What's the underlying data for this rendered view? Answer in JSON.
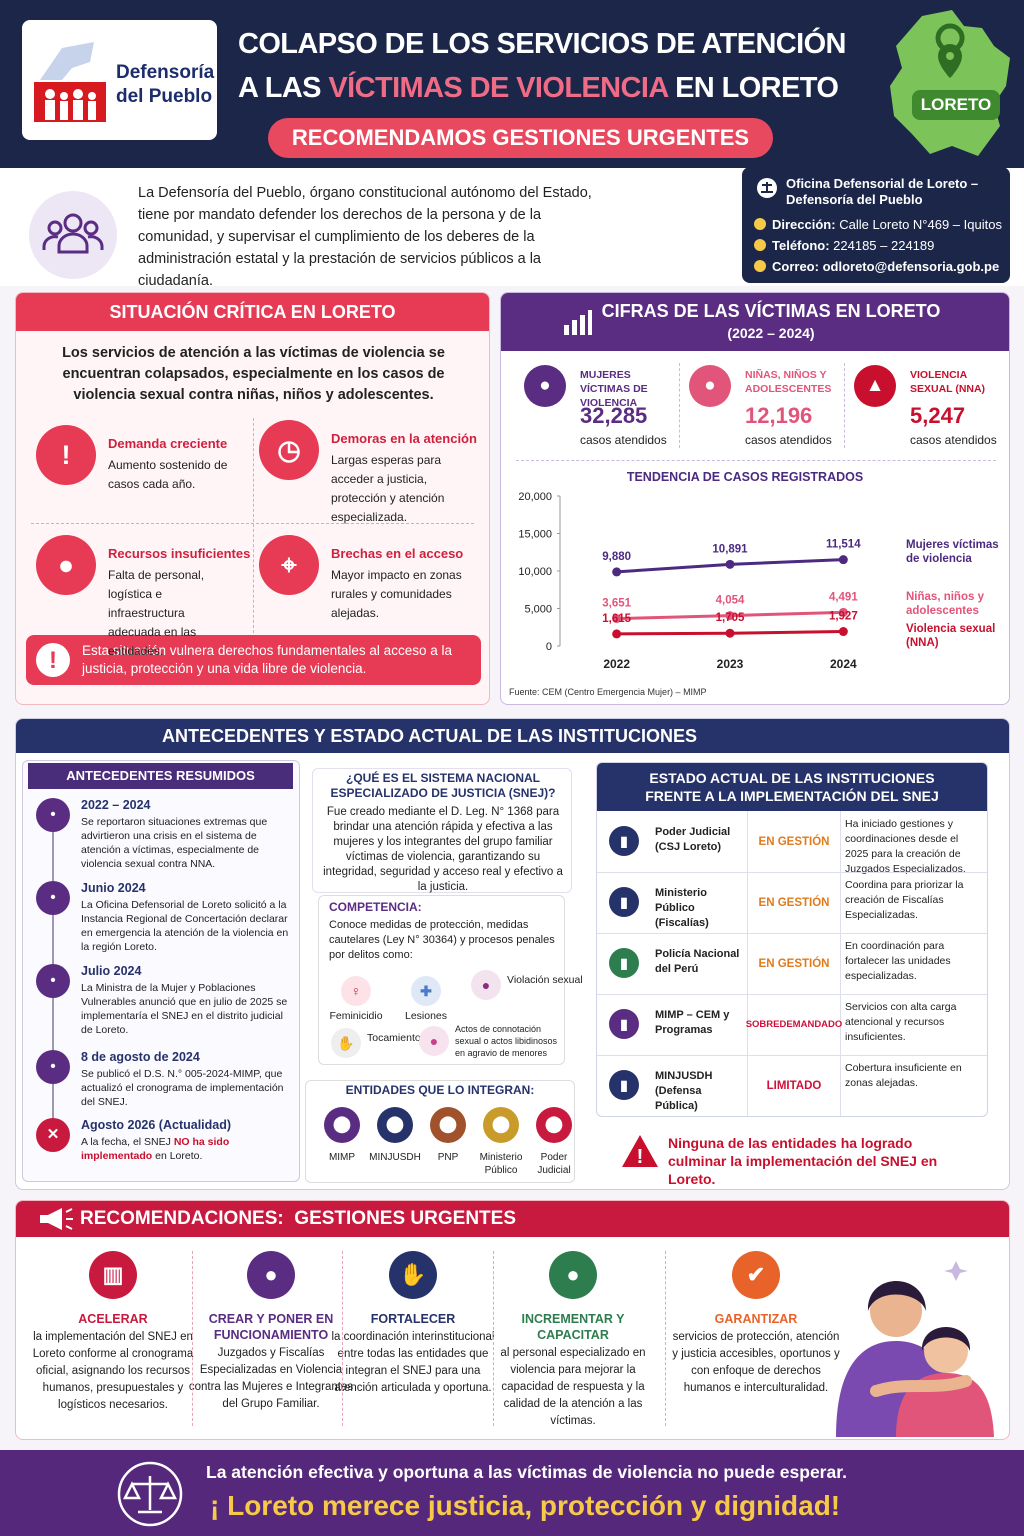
{
  "header": {
    "logo_line1": "Defensoría",
    "logo_line2": "del Pueblo",
    "title_line1": "COLAPSO DE LOS SERVICIOS DE ATENCIÓN",
    "title_line2_a": "A LAS",
    "title_line2_b": "VÍCTIMAS DE VIOLENCIA",
    "title_line2_c": "EN LORETO",
    "subtitle": "RECOMENDAMOS GESTIONES URGENTES",
    "map_label": "LORETO"
  },
  "intro": {
    "text": "La Defensoría del Pueblo, órgano constitucional autónomo del Estado, tiene por mandato defender los derechos de la persona y de la comunidad, y supervisar el cumplimiento de los deberes de la administración estatal y la prestación de servicios públicos a la ciudadanía."
  },
  "office": {
    "name": "Oficina Defensorial de Loreto – Defensoría del Pueblo",
    "address_label": "Dirección:",
    "address": "Calle Loreto N°469 – Iquitos",
    "phone_label": "Teléfono:",
    "phone": "224185 – 224189",
    "email_label": "Correo:",
    "email": "odloreto@defensoria.gob.pe"
  },
  "critical": {
    "title": "SITUACIÓN CRÍTICA EN LORETO",
    "lead": "Los servicios de atención a las víctimas de violencia se encuentran colapsados, especialmente en los casos de violencia sexual contra niñas, niños y adolescentes.",
    "items": [
      {
        "title": "Demanda creciente",
        "text": "Aumento sostenido de casos cada año."
      },
      {
        "title": "Demoras en la atención",
        "text": "Largas esperas para acceder a justicia, protección y atención especializada."
      },
      {
        "title": "Recursos insuficientes",
        "text": "Falta de personal, logística e infraestructura adecuada en las entidades."
      },
      {
        "title": "Brechas en el acceso",
        "text": "Mayor impacto en zonas rurales y comunidades alejadas."
      }
    ],
    "alert": "Esta situación vulnera derechos fundamentales al acceso a la justicia, protección y una vida libre de violencia."
  },
  "figures": {
    "title": "CIFRAS DE LAS VÍCTIMAS EN LORETO",
    "period": "(2022 – 2024)",
    "stats": [
      {
        "label": "MUJERES VÍCTIMAS DE VIOLENCIA",
        "value": "32,285",
        "unit": "casos atendidos"
      },
      {
        "label": "NIÑAS, NIÑOS Y ADOLESCENTES",
        "value": "12,196",
        "unit": "casos atendidos"
      },
      {
        "label": "VIOLENCIA SEXUAL (NNA)",
        "value": "5,247",
        "unit": "casos atendidos"
      }
    ]
  },
  "chart_data": {
    "type": "line",
    "title": "TENDENCIA DE CASOS REGISTRADOS",
    "categories": [
      "2022",
      "2023",
      "2024"
    ],
    "series": [
      {
        "name": "Mujeres víctimas de violencia",
        "color": "#4b2a80",
        "values": [
          9880,
          10891,
          11514
        ],
        "value_labels": [
          "9,880",
          "10,891",
          "11,514"
        ]
      },
      {
        "name": "Niñas, niños y adolescentes",
        "color": "#e2557a",
        "values": [
          3651,
          4054,
          4491
        ],
        "value_labels": [
          "3,651",
          "4,054",
          "4,491"
        ]
      },
      {
        "name": "Violencia sexual (NNA)",
        "color": "#c8102e",
        "values": [
          1615,
          1705,
          1927
        ],
        "value_labels": [
          "1,615",
          "1,705",
          "1,927"
        ]
      }
    ],
    "ylim": [
      0,
      20000
    ],
    "yticks": [
      0,
      {
        "value": 5000,
        "label": "5,000"
      },
      {
        "value": 10000,
        "label": "10,000"
      },
      {
        "value": 15000,
        "label": "15,000"
      },
      {
        "value": 20000,
        "label": "20,000"
      }
    ],
    "grid": false,
    "source": "Fuente: CEM (Centro Emergencia Mujer) – MIMP"
  },
  "background": {
    "title": "ANTECEDENTES Y ESTADO ACTUAL DE LAS INSTITUCIONES",
    "timeline": {
      "title": "ANTECEDENTES RESUMIDOS",
      "events": [
        {
          "date": "2022 – 2024",
          "text": "Se reportaron situaciones extremas que advirtieron una crisis en el sistema de atención a víctimas, especialmente de violencia sexual contra NNA."
        },
        {
          "date": "Junio 2024",
          "text": "La Oficina Defensorial de Loreto solicitó a la Instancia Regional de Concertación declarar en emergencia la atención de la violencia en la región Loreto."
        },
        {
          "date": "Julio 2024",
          "text": "La Ministra de la Mujer y Poblaciones Vulnerables anunció que en julio de 2025 se implementaría el SNEJ en el distrito judicial de Loreto."
        },
        {
          "date": "8 de agosto de 2024",
          "text": "Se publicó el D.S. N.° 005-2024-MIMP, que actualizó el cronograma de implementación del SNEJ."
        },
        {
          "date": "Agosto 2026 (Actualidad)",
          "text": "A la fecha, el SNEJ",
          "text_highlight": "NO ha sido implementado",
          "text_end": "en Loreto."
        }
      ]
    },
    "snej": {
      "title": "¿QUÉ ES EL SISTEMA NACIONAL ESPECIALIZADO DE JUSTICIA (SNEJ)?",
      "text": "Fue creado mediante el D. Leg. N° 1368 para brindar una atención rápida y efectiva a las mujeres y los integrantes del grupo familiar víctimas de violencia, garantizando su integridad, seguridad y acceso real y efectivo a la justicia.",
      "competence_title": "COMPETENCIA:",
      "competence_text": "Conoce medidas de protección, medidas cautelares (Ley N° 30364) y procesos penales por delitos como:",
      "crimes": [
        "Feminicidio",
        "Lesiones",
        "Violación sexual",
        "Tocamientos",
        "Actos de connotación sexual o actos libidinosos en agravio de menores"
      ],
      "entities_title": "ENTIDADES QUE LO INTEGRAN:",
      "entities": [
        "MIMP",
        "MINJUSDH",
        "PNP",
        "Ministerio Público",
        "Poder Judicial"
      ]
    },
    "status": {
      "title": "ESTADO ACTUAL DE LAS INSTITUCIONES FRENTE A LA IMPLEMENTACIÓN DEL SNEJ",
      "rows": [
        {
          "name": "Poder Judicial (CSJ Loreto)",
          "status": "EN GESTIÓN",
          "note": "Ha iniciado gestiones y coordinaciones desde el 2025 para la creación de Juzgados Especializados."
        },
        {
          "name": "Ministerio Público (Fiscalías)",
          "status": "EN GESTIÓN",
          "note": "Coordina para priorizar la creación de Fiscalías Especializadas."
        },
        {
          "name": "Policía Nacional del Perú",
          "status": "EN GESTIÓN",
          "note": "En coordinación para fortalecer las unidades especializadas."
        },
        {
          "name": "MIMP – CEM y Programas",
          "status": "SOBREDEMANDADO",
          "note": "Servicios con alta carga atencional y recursos insuficientes."
        },
        {
          "name": "MINJUSDH (Defensa Pública)",
          "status": "LIMITADO",
          "note": "Cobertura insuficiente en zonas alejadas."
        }
      ],
      "warning": "Ninguna de las entidades ha logrado culminar la implementación del SNEJ en Loreto."
    }
  },
  "recommendations": {
    "title": "RECOMENDACIONES:  GESTIONES URGENTES",
    "items": [
      {
        "title": "ACELERAR",
        "text": "la implementación del SNEJ en Loreto conforme al cronograma oficial, asignando los recursos humanos, presupuestales y logísticos necesarios."
      },
      {
        "title": "CREAR Y PONER EN FUNCIONAMIENTO",
        "text": "Juzgados y Fiscalías Especializadas en Violencia contra las Mujeres e Integrantes del Grupo Familiar."
      },
      {
        "title": "FORTALECER",
        "text": "la coordinación interinstitucional entre todas las entidades que integran el SNEJ para una atención articulada y oportuna."
      },
      {
        "title": "INCREMENTAR Y CAPACITAR",
        "text": "al personal especializado en violencia para mejorar la capacidad de respuesta y la calidad de la atención a las víctimas."
      },
      {
        "title": "GARANTIZAR",
        "text": "servicios de protección, atención y justicia accesibles, oportunos y con enfoque de derechos humanos e interculturalidad."
      }
    ]
  },
  "footer": {
    "line1": "La atención efectiva y oportuna a las víctimas de violencia no puede esperar.",
    "line2": "¡ Loreto merece justicia, protección y dignidad!"
  }
}
